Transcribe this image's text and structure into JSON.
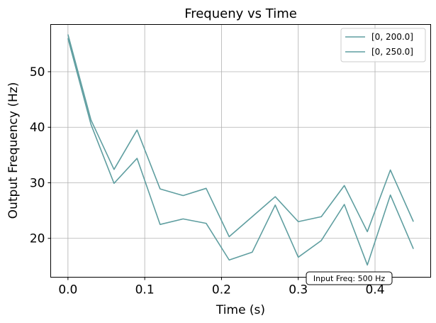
{
  "chart_data": {
    "type": "line",
    "title": "Frequeny vs Time",
    "xlabel": "Time (s)",
    "ylabel": "Output Frequency (Hz)",
    "xlim": [
      -0.0225,
      0.4725
    ],
    "ylim": [
      13.0,
      58.5
    ],
    "xticks": [
      0.0,
      0.1,
      0.2,
      0.3,
      0.4
    ],
    "xtick_labels": [
      "0.0",
      "0.1",
      "0.2",
      "0.3",
      "0.4"
    ],
    "yticks": [
      20,
      30,
      40,
      50
    ],
    "ytick_labels": [
      "20",
      "30",
      "40",
      "50"
    ],
    "grid": true,
    "legend_position": "upper right",
    "series_color": "#5f9ea0",
    "x": [
      0.0,
      0.03,
      0.06,
      0.09,
      0.12,
      0.15,
      0.18,
      0.21,
      0.24,
      0.27,
      0.3,
      0.33,
      0.36,
      0.39,
      0.42,
      0.45
    ],
    "series": [
      {
        "name": "[0, 200.0]",
        "values": [
          56.7,
          41.3,
          32.4,
          39.5,
          28.9,
          27.7,
          29.0,
          20.3,
          23.9,
          27.5,
          23.0,
          23.9,
          29.5,
          21.2,
          32.3,
          23.0
        ]
      },
      {
        "name": "[0, 250.0]",
        "values": [
          56.0,
          40.5,
          29.9,
          34.4,
          22.5,
          23.5,
          22.7,
          16.1,
          17.5,
          26.0,
          16.6,
          19.6,
          26.1,
          15.2,
          27.8,
          18.1
        ]
      }
    ],
    "annotation": "Input Freq: 500 Hz"
  }
}
